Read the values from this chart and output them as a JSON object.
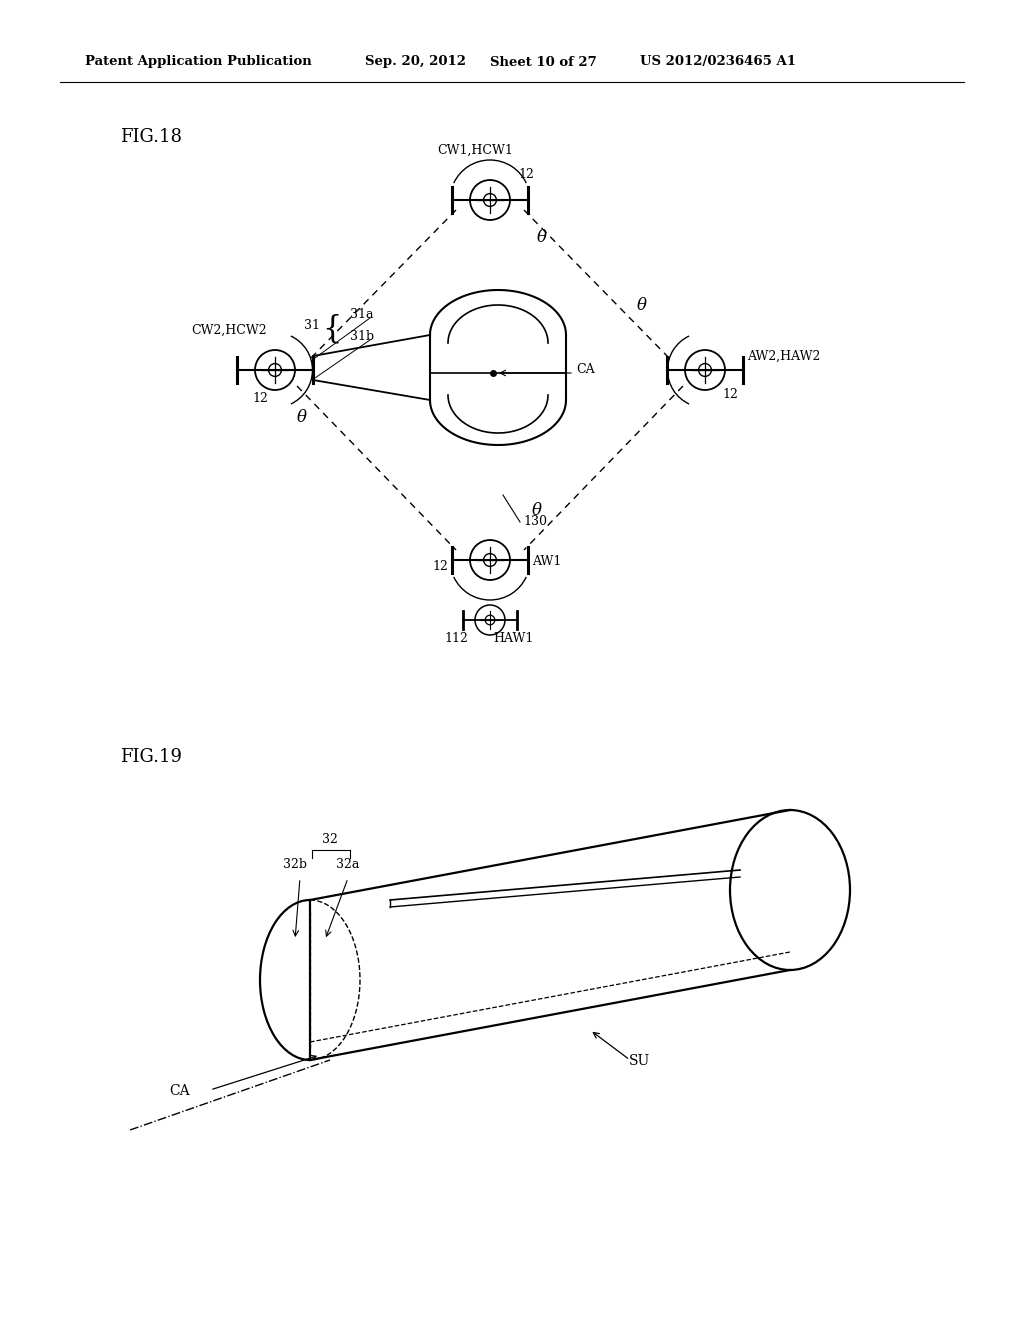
{
  "bg_color": "#ffffff",
  "line_color": "#000000",
  "header_text1": "Patent Application Publication",
  "header_text2": "Sep. 20, 2012",
  "header_text3": "Sheet 10 of 27",
  "header_text4": "US 2012/0236465 A1",
  "fig18_label": "FIG.18",
  "fig19_label": "FIG.19",
  "CW1HCW1": "CW1,HCW1",
  "CW2HCW2": "CW2,HCW2",
  "AW2HAW2": "AW2,HAW2",
  "AW1": "AW1",
  "HAW1": "HAW1",
  "CA": "CA",
  "SU": "SU",
  "theta": "θ",
  "num12": "12",
  "num31": "31",
  "num31a": "31a",
  "num31b": "31b",
  "num112": "112",
  "num130": "130",
  "num32": "32",
  "num32a": "32a",
  "num32b": "32b"
}
